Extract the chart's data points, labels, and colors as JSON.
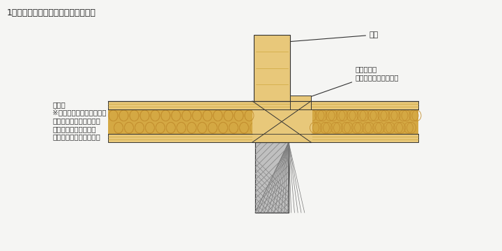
{
  "title": "1階床と間仕切り壁との取り合い部分",
  "bg_color": "#f5f5f3",
  "wood_light": "#e8c87a",
  "wood_mid": "#d4a843",
  "wood_dark": "#c49030",
  "beam_color": "#d4aa55",
  "plywood_color": "#e8c87a",
  "concrete_color": "#a0a0a0",
  "concrete_fill": "#b8b8b8",
  "line_color": "#333333",
  "annotation_color": "#333333",
  "label_madohashira": "間柱",
  "label_madohashira_uke": "間柱受け材\n（床合板の後に施工）",
  "label_yukagoban": "床合板\n※下地のある部分で継ぐか\n　実付のものを使用し、\n　それ以外の場合は、\n　気密テープで目地処理"
}
